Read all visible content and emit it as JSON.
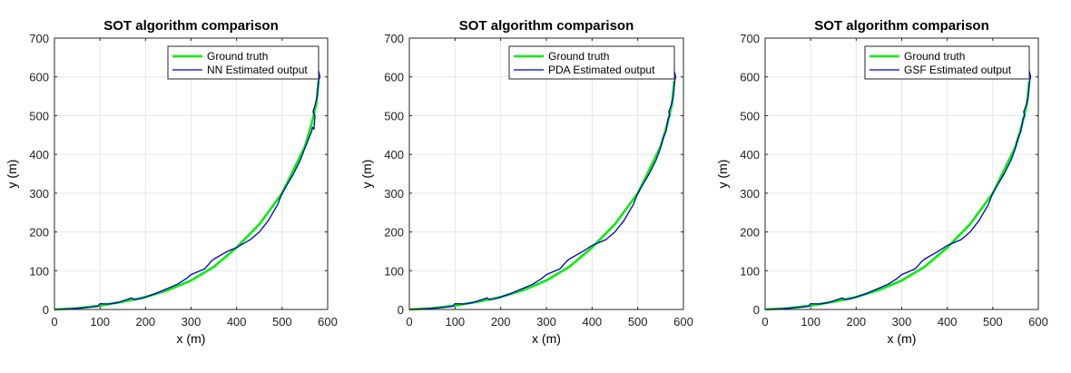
{
  "chart_data": [
    {
      "type": "line",
      "title": "SOT algorithm comparison",
      "xlabel": "x (m)",
      "ylabel": "y (m)",
      "xlim": [
        0,
        600
      ],
      "ylim": [
        0,
        700
      ],
      "xticks": [
        "0",
        "100",
        "200",
        "300",
        "400",
        "500",
        "600"
      ],
      "yticks": [
        "0",
        "100",
        "200",
        "300",
        "400",
        "500",
        "600",
        "700"
      ],
      "grid": true,
      "legend_position": "top-right",
      "series": [
        {
          "name": "Ground truth",
          "color": "#00ee00",
          "x": [
            0,
            50,
            100,
            150,
            200,
            250,
            300,
            350,
            400,
            450,
            500,
            525,
            550,
            565,
            575,
            580
          ],
          "y": [
            0,
            3,
            10,
            20,
            32,
            50,
            75,
            110,
            160,
            220,
            300,
            360,
            420,
            480,
            530,
            590
          ]
        },
        {
          "name": "NN Estimated output",
          "color": "#0000cc",
          "x": [
            0,
            40,
            80,
            95,
            100,
            120,
            140,
            170,
            175,
            190,
            220,
            250,
            270,
            290,
            300,
            330,
            345,
            350,
            380,
            400,
            430,
            450,
            470,
            480,
            490,
            500,
            510,
            525,
            540,
            548,
            555,
            560,
            565,
            567,
            570,
            572,
            568,
            573,
            577,
            580,
            583,
            580,
            578
          ],
          "y": [
            0,
            2,
            6,
            8,
            15,
            14,
            18,
            30,
            25,
            28,
            40,
            55,
            65,
            80,
            90,
            105,
            125,
            130,
            150,
            160,
            180,
            200,
            230,
            250,
            270,
            300,
            320,
            350,
            385,
            410,
            430,
            445,
            460,
            470,
            465,
            500,
            510,
            530,
            550,
            590,
            600,
            615,
            600
          ]
        }
      ]
    },
    {
      "type": "line",
      "title": "SOT algorithm comparison",
      "xlabel": "x (m)",
      "ylabel": "y (m)",
      "xlim": [
        0,
        600
      ],
      "ylim": [
        0,
        700
      ],
      "xticks": [
        "0",
        "100",
        "200",
        "300",
        "400",
        "500",
        "600"
      ],
      "yticks": [
        "0",
        "100",
        "200",
        "300",
        "400",
        "500",
        "600",
        "700"
      ],
      "grid": true,
      "legend_position": "top-right",
      "series": [
        {
          "name": "Ground truth",
          "color": "#00ee00",
          "x": [
            0,
            50,
            100,
            150,
            200,
            250,
            300,
            350,
            400,
            450,
            500,
            525,
            550,
            565,
            575,
            580
          ],
          "y": [
            0,
            3,
            10,
            20,
            32,
            50,
            75,
            110,
            160,
            220,
            300,
            360,
            420,
            480,
            530,
            590
          ]
        },
        {
          "name": "PDA Estimated output",
          "color": "#0000cc",
          "x": [
            0,
            40,
            80,
            95,
            100,
            120,
            140,
            170,
            175,
            190,
            220,
            250,
            270,
            290,
            300,
            330,
            345,
            350,
            380,
            400,
            430,
            450,
            470,
            480,
            490,
            500,
            510,
            525,
            540,
            548,
            555,
            562,
            566,
            570,
            568,
            574,
            578,
            581,
            583,
            580,
            578
          ],
          "y": [
            0,
            2,
            6,
            8,
            15,
            14,
            18,
            30,
            25,
            28,
            40,
            55,
            65,
            80,
            90,
            105,
            125,
            130,
            150,
            165,
            180,
            200,
            230,
            250,
            270,
            300,
            320,
            350,
            385,
            410,
            440,
            460,
            490,
            500,
            510,
            530,
            550,
            590,
            600,
            615,
            600
          ]
        }
      ]
    },
    {
      "type": "line",
      "title": "SOT algorithm comparison",
      "xlabel": "x (m)",
      "ylabel": "y (m)",
      "xlim": [
        0,
        600
      ],
      "ylim": [
        0,
        700
      ],
      "xticks": [
        "0",
        "100",
        "200",
        "300",
        "400",
        "500",
        "600"
      ],
      "yticks": [
        "0",
        "100",
        "200",
        "300",
        "400",
        "500",
        "600",
        "700"
      ],
      "grid": true,
      "legend_position": "top-right",
      "series": [
        {
          "name": "Ground truth",
          "color": "#00ee00",
          "x": [
            0,
            50,
            100,
            150,
            200,
            250,
            300,
            350,
            400,
            450,
            500,
            525,
            550,
            565,
            575,
            580
          ],
          "y": [
            0,
            3,
            10,
            20,
            32,
            50,
            75,
            110,
            160,
            220,
            300,
            360,
            420,
            480,
            530,
            590
          ]
        },
        {
          "name": "GSF Estimated output",
          "color": "#0000cc",
          "x": [
            0,
            40,
            80,
            95,
            100,
            120,
            140,
            170,
            175,
            190,
            220,
            250,
            270,
            290,
            300,
            330,
            345,
            350,
            380,
            400,
            430,
            450,
            470,
            480,
            490,
            500,
            510,
            525,
            540,
            548,
            555,
            562,
            566,
            570,
            568,
            574,
            578,
            581,
            583,
            580,
            578
          ],
          "y": [
            0,
            2,
            6,
            8,
            15,
            14,
            18,
            30,
            25,
            28,
            40,
            55,
            65,
            80,
            90,
            105,
            125,
            130,
            150,
            165,
            180,
            200,
            230,
            250,
            270,
            300,
            320,
            350,
            385,
            410,
            440,
            460,
            490,
            500,
            510,
            530,
            550,
            590,
            600,
            615,
            600
          ]
        }
      ]
    }
  ]
}
